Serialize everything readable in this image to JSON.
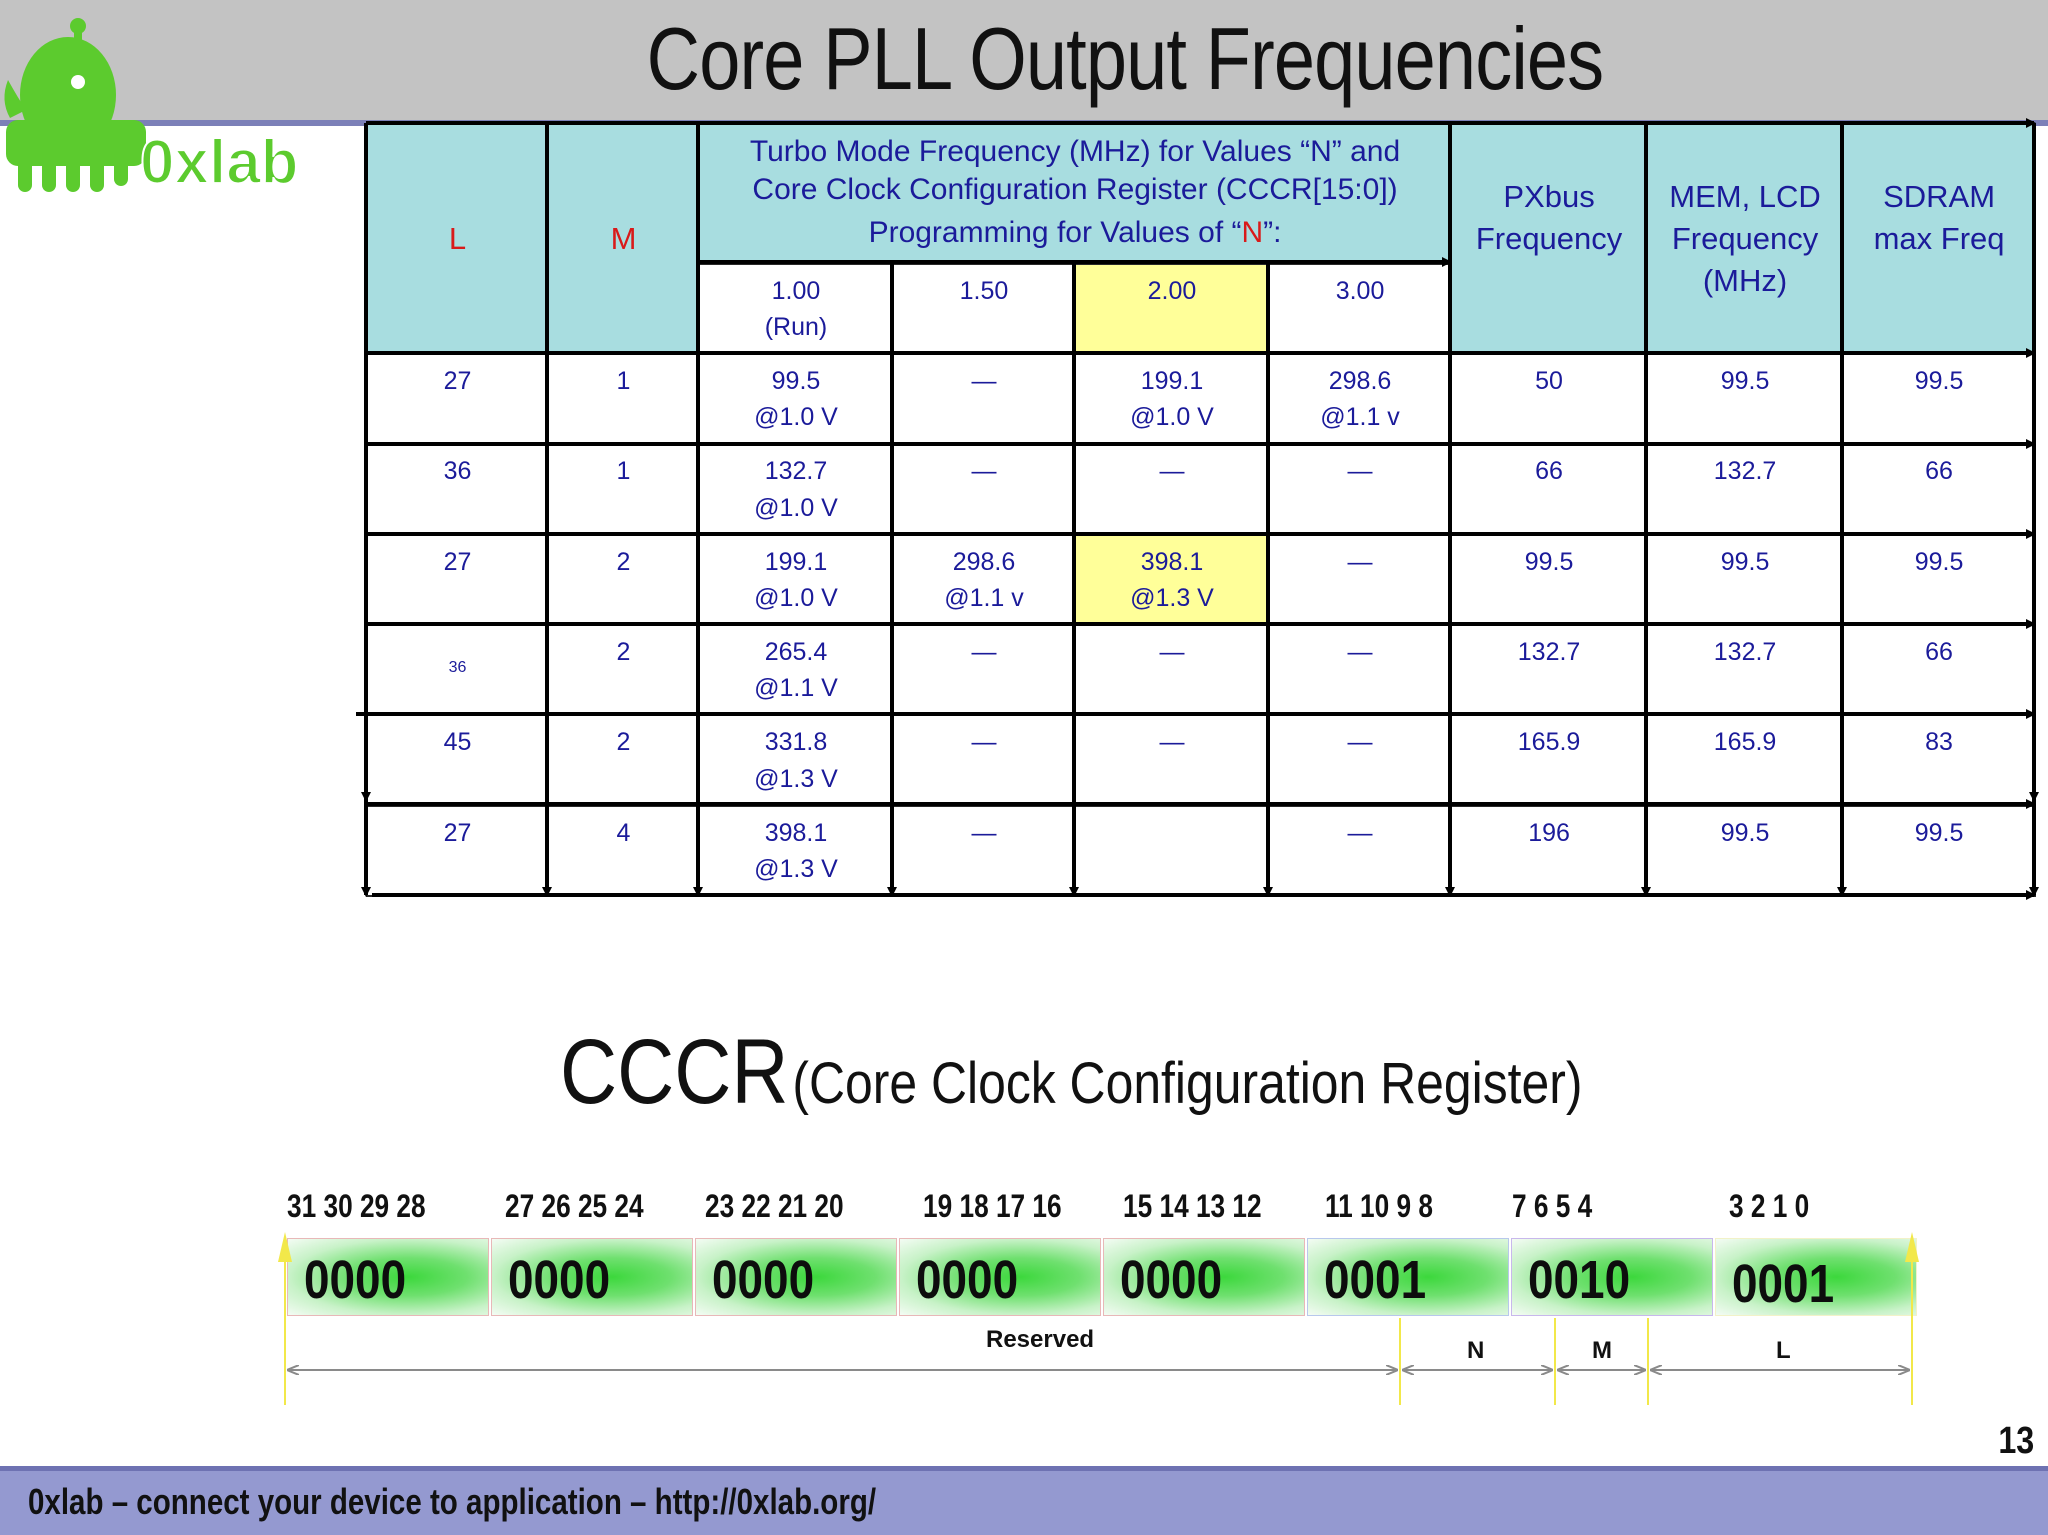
{
  "slide": {
    "title": "Core PLL Output Frequencies",
    "page_number": "13",
    "footer": "0xlab – connect your device to application – http://0xlab.org/"
  },
  "logo": {
    "text": "0xlab",
    "color": "#5ccb2e"
  },
  "table": {
    "headers": {
      "L": "L",
      "M": "M",
      "turbo_line1": "Turbo Mode Frequency (MHz) for Values “N” and",
      "turbo_line2": "Core Clock Configuration Register (CCCR[15:0])",
      "turbo_line3a": "Programming for Values of “",
      "turbo_line3n": "N",
      "turbo_line3b": "”:",
      "pxbus_1": "PXbus",
      "pxbus_2": "Frequency",
      "mem_1": "MEM, LCD",
      "mem_2": "Frequency",
      "mem_3": "(MHz)",
      "sdram_1": "SDRAM",
      "sdram_2": "max Freq",
      "n_cols": [
        {
          "v": "1.00",
          "sub": "(Run)"
        },
        {
          "v": "1.50",
          "sub": ""
        },
        {
          "v": "2.00",
          "sub": ""
        },
        {
          "v": "3.00",
          "sub": ""
        }
      ]
    },
    "rows": [
      {
        "L": "27",
        "M": "1",
        "n100": [
          "99.5",
          "@1.0 V"
        ],
        "n150": [
          "—",
          ""
        ],
        "n200": [
          "199.1",
          "@1.0 V"
        ],
        "n300": [
          "298.6",
          "@1.1 v"
        ],
        "pxbus": "50",
        "mem": "99.5",
        "sdram": "99.5"
      },
      {
        "L": "36",
        "M": "1",
        "n100": [
          "132.7",
          "@1.0 V"
        ],
        "n150": [
          "—",
          ""
        ],
        "n200": [
          "—",
          ""
        ],
        "n300": [
          "—",
          ""
        ],
        "pxbus": "66",
        "mem": "132.7",
        "sdram": "66"
      },
      {
        "L": "27",
        "M": "2",
        "n100": [
          "199.1",
          "@1.0 V"
        ],
        "n150": [
          "298.6",
          "@1.1 v"
        ],
        "n200": [
          "398.1",
          "@1.3 V"
        ],
        "n300": [
          "—",
          ""
        ],
        "pxbus": "99.5",
        "mem": "99.5",
        "sdram": "99.5"
      },
      {
        "L": "36",
        "M": "2",
        "n100": [
          "265.4",
          "@1.1 V"
        ],
        "n150": [
          "—",
          ""
        ],
        "n200": [
          "—",
          ""
        ],
        "n300": [
          "—",
          ""
        ],
        "pxbus": "132.7",
        "mem": "132.7",
        "sdram": "66"
      },
      {
        "L": "45",
        "M": "2",
        "n100": [
          "331.8",
          "@1.3 V"
        ],
        "n150": [
          "—",
          ""
        ],
        "n200": [
          "—",
          ""
        ],
        "n300": [
          "—",
          ""
        ],
        "pxbus": "165.9",
        "mem": "165.9",
        "sdram": "83"
      },
      {
        "L": "27",
        "M": "4",
        "n100": [
          "398.1",
          "@1.3 V"
        ],
        "n150": [
          "—",
          ""
        ],
        "n200": [
          "",
          ""
        ],
        "n300": [
          "—",
          ""
        ],
        "pxbus": "196",
        "mem": "99.5",
        "sdram": "99.5"
      }
    ],
    "highlight_color": "#ffff99",
    "header_color": "#a8dde0"
  },
  "register": {
    "title_big": "CCCR",
    "title_small": "(Core Clock Configuration Register)",
    "bit_groups": [
      "31 30 29 28",
      "27 26 25 24",
      "23 22 21 20",
      "19 18 17 16",
      "15 14 13 12",
      "11 10 9 8",
      "7 6 5 4",
      "3 2 1 0"
    ],
    "nibbles": [
      "0000",
      "0000",
      "0000",
      "0000",
      "0000",
      "0001",
      "0010",
      "0001"
    ],
    "fields": {
      "reserved": "Reserved",
      "n": "N",
      "m": "M",
      "l": "L"
    }
  }
}
